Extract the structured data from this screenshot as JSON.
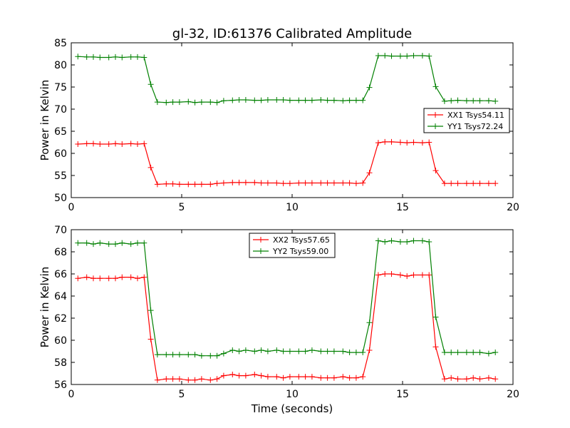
{
  "figure": {
    "title": "gl-32, ID:61376 Calibrated Amplitude"
  },
  "chart_data": [
    {
      "type": "line",
      "title": "gl-32, ID:61376 Calibrated Amplitude",
      "xlabel": "",
      "ylabel": "Power in Kelvin",
      "xlim": [
        0,
        20
      ],
      "ylim": [
        50,
        85
      ],
      "xticks": [
        0,
        5,
        10,
        15,
        20
      ],
      "yticks": [
        50,
        55,
        60,
        65,
        70,
        75,
        80,
        85
      ],
      "grid": false,
      "legend_position": "center-right",
      "x": [
        0.3,
        0.7,
        1.0,
        1.3,
        1.7,
        2.0,
        2.3,
        2.7,
        3.0,
        3.3,
        3.6,
        3.9,
        4.3,
        4.6,
        4.9,
        5.3,
        5.6,
        5.9,
        6.3,
        6.6,
        6.9,
        7.3,
        7.6,
        7.9,
        8.3,
        8.6,
        8.9,
        9.3,
        9.6,
        9.9,
        10.3,
        10.6,
        10.9,
        11.3,
        11.6,
        11.9,
        12.3,
        12.6,
        12.9,
        13.2,
        13.5,
        13.9,
        14.2,
        14.5,
        14.9,
        15.2,
        15.5,
        15.9,
        16.2,
        16.5,
        16.9,
        17.2,
        17.5,
        17.9,
        18.2,
        18.5,
        18.9,
        19.2
      ],
      "series": [
        {
          "name": "XX1 Tsys54.11",
          "color": "#ff0000",
          "values": [
            62.1,
            62.2,
            62.2,
            62.1,
            62.1,
            62.2,
            62.1,
            62.2,
            62.1,
            62.2,
            56.8,
            53.0,
            53.1,
            53.1,
            53.0,
            53.0,
            53.0,
            53.0,
            53.0,
            53.2,
            53.3,
            53.4,
            53.4,
            53.4,
            53.4,
            53.3,
            53.3,
            53.3,
            53.2,
            53.2,
            53.3,
            53.3,
            53.3,
            53.3,
            53.3,
            53.3,
            53.3,
            53.3,
            53.2,
            53.3,
            55.6,
            62.4,
            62.6,
            62.6,
            62.5,
            62.4,
            62.5,
            62.4,
            62.5,
            56.1,
            53.2,
            53.2,
            53.2,
            53.2,
            53.2,
            53.2,
            53.2,
            53.2
          ]
        },
        {
          "name": "YY1 Tsys72.24",
          "color": "#008000",
          "values": [
            81.9,
            81.8,
            81.8,
            81.7,
            81.7,
            81.8,
            81.7,
            81.8,
            81.8,
            81.7,
            75.6,
            71.6,
            71.5,
            71.6,
            71.6,
            71.7,
            71.5,
            71.6,
            71.6,
            71.5,
            71.9,
            72.0,
            72.1,
            72.1,
            72.0,
            72.0,
            72.1,
            72.1,
            72.1,
            72.0,
            72.0,
            72.0,
            72.0,
            72.1,
            72.0,
            72.0,
            71.9,
            72.0,
            72.0,
            72.0,
            74.9,
            82.1,
            82.1,
            82.0,
            82.0,
            82.0,
            82.1,
            82.1,
            82.0,
            75.1,
            71.8,
            71.9,
            72.0,
            71.9,
            71.9,
            71.9,
            71.9,
            71.8
          ]
        }
      ]
    },
    {
      "type": "line",
      "title": "",
      "xlabel": "Time (seconds)",
      "ylabel": "Power in Kelvin",
      "xlim": [
        0,
        20
      ],
      "ylim": [
        56,
        70
      ],
      "xticks": [
        0,
        5,
        10,
        15,
        20
      ],
      "yticks": [
        56,
        58,
        60,
        62,
        64,
        66,
        68,
        70
      ],
      "grid": false,
      "legend_position": "upper-center",
      "x": [
        0.3,
        0.7,
        1.0,
        1.3,
        1.7,
        2.0,
        2.3,
        2.7,
        3.0,
        3.3,
        3.6,
        3.9,
        4.3,
        4.6,
        4.9,
        5.3,
        5.6,
        5.9,
        6.3,
        6.6,
        6.9,
        7.3,
        7.6,
        7.9,
        8.3,
        8.6,
        8.9,
        9.3,
        9.6,
        9.9,
        10.3,
        10.6,
        10.9,
        11.3,
        11.6,
        11.9,
        12.3,
        12.6,
        12.9,
        13.2,
        13.5,
        13.9,
        14.2,
        14.5,
        14.9,
        15.2,
        15.5,
        15.9,
        16.2,
        16.5,
        16.9,
        17.2,
        17.5,
        17.9,
        18.2,
        18.5,
        18.9,
        19.2
      ],
      "series": [
        {
          "name": "XX2 Tsys57.65",
          "color": "#ff0000",
          "values": [
            65.6,
            65.7,
            65.6,
            65.6,
            65.6,
            65.6,
            65.7,
            65.7,
            65.6,
            65.7,
            60.1,
            56.4,
            56.5,
            56.5,
            56.5,
            56.4,
            56.4,
            56.5,
            56.4,
            56.5,
            56.8,
            56.9,
            56.8,
            56.8,
            56.9,
            56.8,
            56.7,
            56.7,
            56.6,
            56.7,
            56.7,
            56.7,
            56.7,
            56.6,
            56.6,
            56.6,
            56.7,
            56.6,
            56.6,
            56.7,
            59.1,
            65.9,
            66.0,
            66.0,
            65.9,
            65.8,
            65.9,
            65.9,
            65.9,
            59.4,
            56.5,
            56.6,
            56.5,
            56.5,
            56.6,
            56.5,
            56.6,
            56.5
          ]
        },
        {
          "name": "YY2 Tsys59.00",
          "color": "#008000",
          "values": [
            68.8,
            68.8,
            68.7,
            68.8,
            68.7,
            68.7,
            68.8,
            68.7,
            68.8,
            68.8,
            62.7,
            58.7,
            58.7,
            58.7,
            58.7,
            58.7,
            58.7,
            58.6,
            58.6,
            58.6,
            58.8,
            59.1,
            59.0,
            59.1,
            59.0,
            59.1,
            59.0,
            59.1,
            59.0,
            59.0,
            59.0,
            59.0,
            59.1,
            59.0,
            59.0,
            59.0,
            59.0,
            58.9,
            58.9,
            58.9,
            61.6,
            69.0,
            68.9,
            69.0,
            68.9,
            68.9,
            69.0,
            69.0,
            68.9,
            62.1,
            58.9,
            58.9,
            58.9,
            58.9,
            58.9,
            58.9,
            58.8,
            58.9
          ]
        }
      ]
    }
  ]
}
